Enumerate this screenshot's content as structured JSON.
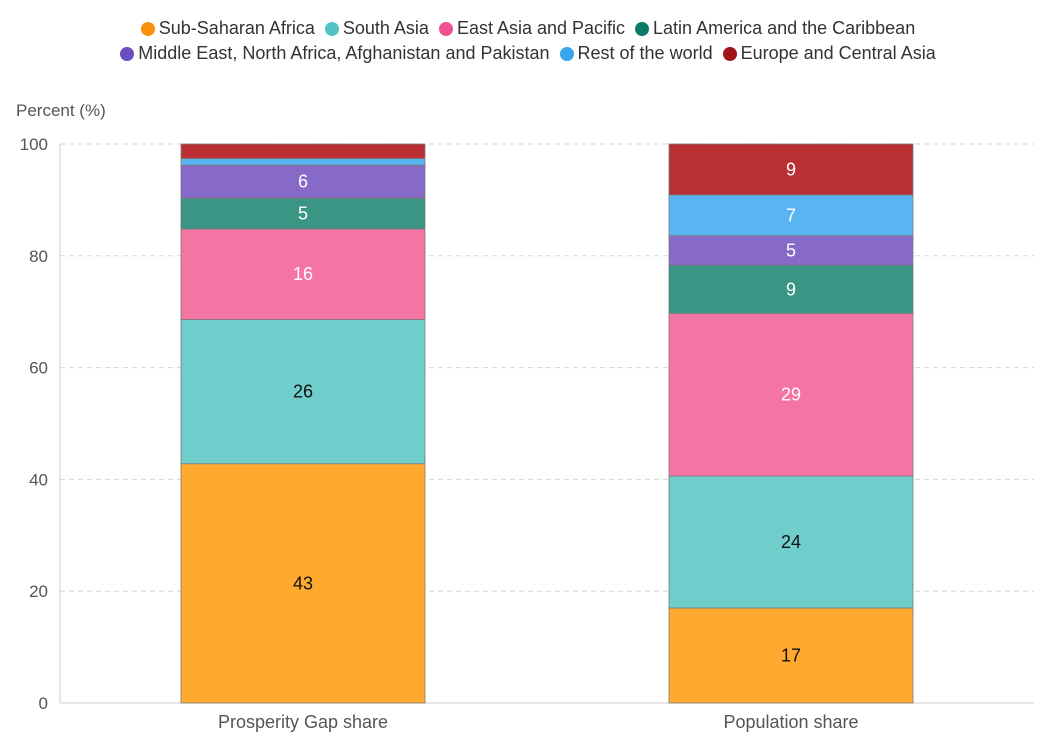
{
  "chart_data": {
    "type": "bar",
    "stacked": true,
    "ylabel": "Percent (%)",
    "ylim": [
      0,
      100
    ],
    "yticks": [
      0,
      20,
      40,
      60,
      80,
      100
    ],
    "grid": "horizontal dashed",
    "legend_position": "top",
    "categories": [
      "Prosperity Gap share",
      "Population share"
    ],
    "series": [
      {
        "name": "Sub-Saharan Africa",
        "color": "#FFA92E",
        "legend_color": "#F6900E",
        "values": [
          42.8,
          17.0
        ],
        "labels": [
          "43",
          "17"
        ],
        "label_color": "#111111"
      },
      {
        "name": "South Asia",
        "color": "#6FCDCC",
        "legend_color": "#52C4C2",
        "values": [
          25.8,
          23.6
        ],
        "labels": [
          "26",
          "24"
        ],
        "label_color": "#111111"
      },
      {
        "name": "East Asia and Pacific",
        "color": "#F475A3",
        "legend_color": "#EF5291",
        "values": [
          16.2,
          29.1
        ],
        "labels": [
          "16",
          "29"
        ],
        "label_color": "#ffffff"
      },
      {
        "name": "Latin America and the Caribbean",
        "color": "#3A9584",
        "legend_color": "#097A65",
        "values": [
          5.5,
          8.6
        ],
        "labels": [
          "5",
          "9"
        ],
        "label_color": "#ffffff"
      },
      {
        "name": "Middle East, North Africa, Afghanistan and Pakistan",
        "color": "#8769C8",
        "legend_color": "#6B4EC0",
        "values": [
          5.9,
          5.3
        ],
        "labels": [
          "6",
          "5"
        ],
        "label_color": "#ffffff"
      },
      {
        "name": "Rest of the world",
        "color": "#58B5F2",
        "legend_color": "#3AA5EC",
        "values": [
          1.2,
          7.3
        ],
        "labels": [
          "",
          "7"
        ],
        "label_color": "#ffffff"
      },
      {
        "name": "Europe and Central Asia",
        "color": "#BA2F34",
        "legend_color": "#A31419",
        "values": [
          2.6,
          9.1
        ],
        "labels": [
          "",
          "9"
        ],
        "label_color": "#ffffff"
      }
    ]
  }
}
